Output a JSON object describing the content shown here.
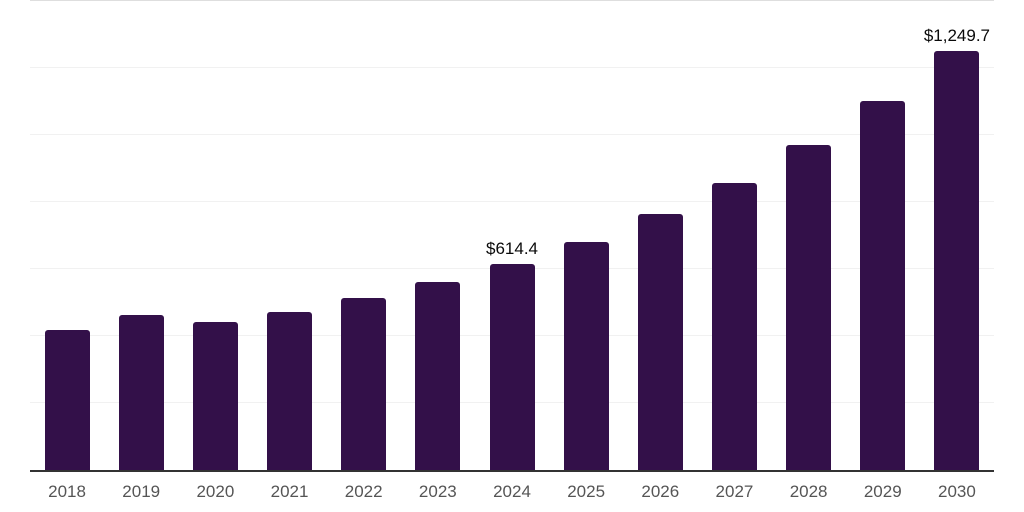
{
  "chart": {
    "colors": {
      "bar": "#331049",
      "axis": "#333333",
      "gridline": "#f1f1f1",
      "gridline_top": "#dedede",
      "data_label": "#0a0a0a",
      "tick_label": "#555555",
      "background": "#ffffff"
    }
  },
  "chart_data": {
    "type": "bar",
    "title": "",
    "xlabel": "",
    "ylabel": "",
    "categories": [
      "2018",
      "2019",
      "2020",
      "2021",
      "2022",
      "2023",
      "2024",
      "2025",
      "2026",
      "2027",
      "2028",
      "2029",
      "2030"
    ],
    "values": [
      418.4,
      463.2,
      442.3,
      470.2,
      512.9,
      560.2,
      614.4,
      682.0,
      763.4,
      857.9,
      970.0,
      1100.3,
      1249.7
    ],
    "data_labels": [
      "",
      "",
      "",
      "",
      "",
      "",
      "$614.4",
      "",
      "",
      "",
      "",
      "",
      "$1,249.7"
    ],
    "ylim": [
      0,
      1400
    ],
    "gridline_levels": [
      200,
      400,
      600,
      800,
      1000,
      1200,
      1400
    ],
    "grid": true,
    "legend": false
  }
}
